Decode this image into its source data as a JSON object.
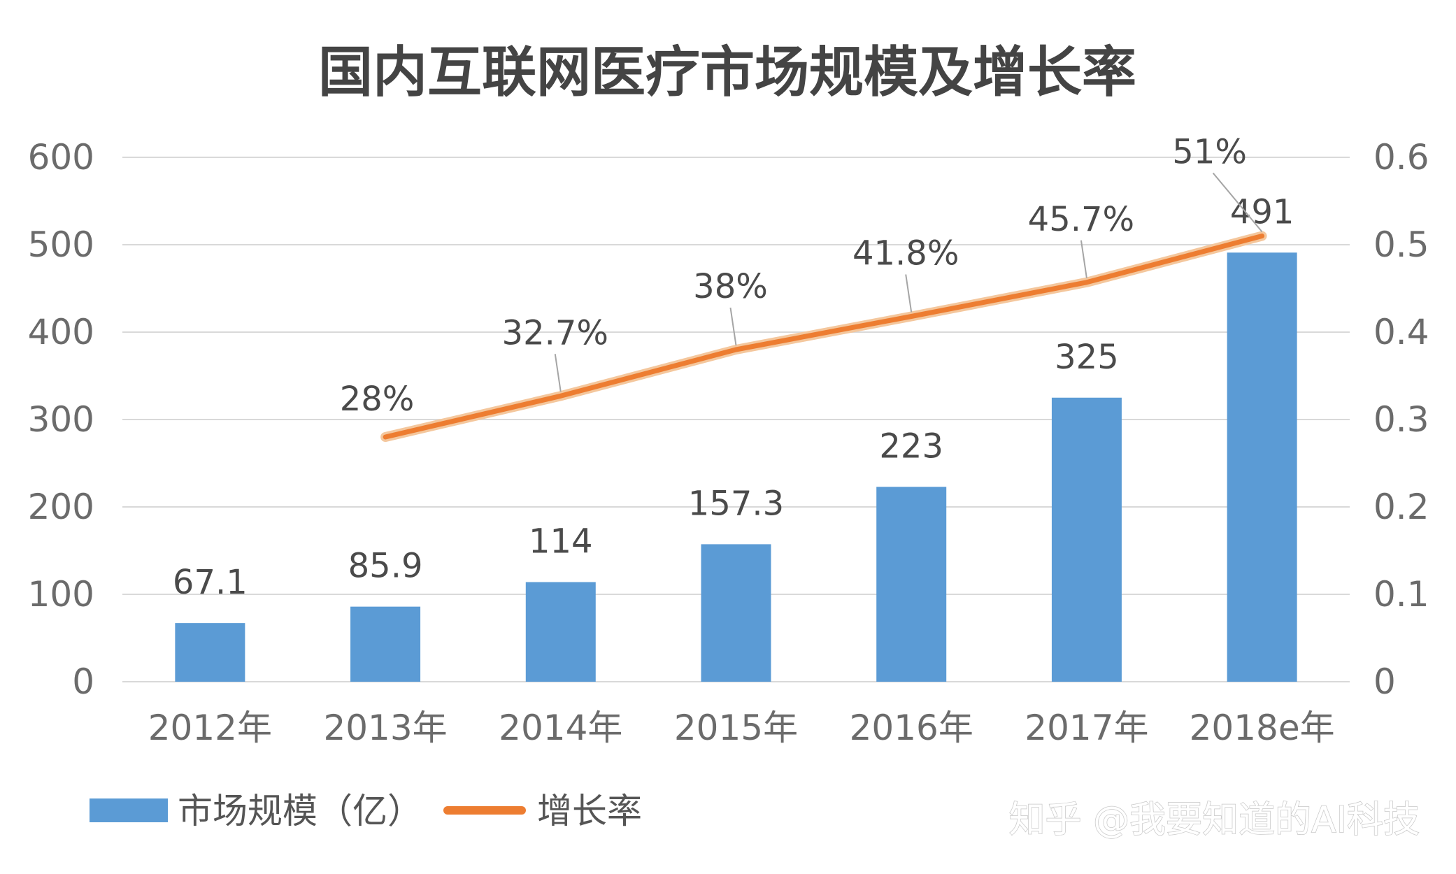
{
  "chart_data": {
    "type": "bar",
    "title": "国内互联网医疗市场规模及增长率",
    "categories": [
      "2012年",
      "2013年",
      "2014年",
      "2015年",
      "2016年",
      "2017年",
      "2018e年"
    ],
    "series": [
      {
        "name": "市场规模（亿）",
        "type": "bar",
        "axis": "left",
        "values": [
          67.1,
          85.9,
          114,
          157.3,
          223,
          325,
          491
        ],
        "labels": [
          "67.1",
          "85.9",
          "114",
          "157.3",
          "223",
          "325",
          "491"
        ],
        "color": "#5b9bd5"
      },
      {
        "name": "增长率",
        "type": "line",
        "axis": "right",
        "values": [
          null,
          0.28,
          0.327,
          0.38,
          0.418,
          0.457,
          0.51
        ],
        "labels": [
          "",
          "28%",
          "32.7%",
          "38%",
          "41.8%",
          "45.7%",
          "51%"
        ],
        "color": "#ed7d31"
      }
    ],
    "y_left": {
      "ylim": [
        0,
        600
      ],
      "ticks": [
        "0",
        "100",
        "200",
        "300",
        "400",
        "500",
        "600"
      ]
    },
    "y_right": {
      "ylim": [
        0,
        0.6
      ],
      "ticks": [
        "0",
        "0.1",
        "0.2",
        "0.3",
        "0.4",
        "0.5",
        "0.6"
      ]
    },
    "grid": true,
    "legend": "bottom-left"
  },
  "watermark": "知乎 @我要知道的AI科技",
  "colors": {
    "gridline": "#d9d9d9",
    "leader": "#a5a5a5",
    "line_glow": "#f4c79d"
  }
}
